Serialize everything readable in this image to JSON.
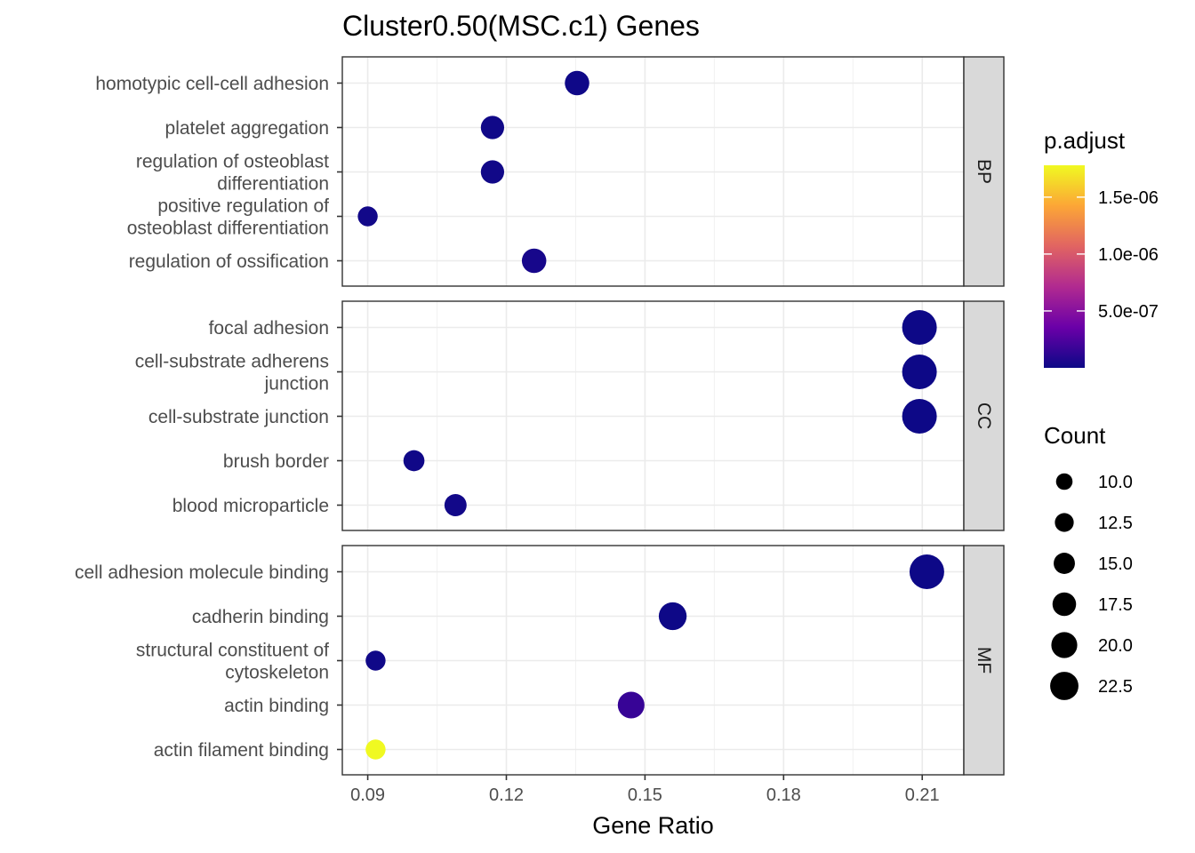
{
  "chart_data": {
    "type": "scatter",
    "title": "Cluster0.50(MSC.c1) Genes",
    "xlabel": "Gene Ratio",
    "ylabel": "",
    "xlim": [
      0.0845,
      0.219
    ],
    "x_ticks": [
      0.09,
      0.12,
      0.15,
      0.18,
      0.21
    ],
    "x_tick_labels": [
      "0.09",
      "0.12",
      "0.15",
      "0.18",
      "0.21"
    ],
    "grid": true,
    "facets": [
      {
        "name": "BP",
        "terms": [
          {
            "label_lines": [
              "homotypic cell-cell adhesion"
            ],
            "x": 0.1353,
            "count": 14,
            "p_adjust": 8e-09
          },
          {
            "label_lines": [
              "platelet aggregation"
            ],
            "x": 0.117,
            "count": 13,
            "p_adjust": 1e-08
          },
          {
            "label_lines": [
              "regulation of osteoblast",
              "differentiation"
            ],
            "x": 0.117,
            "count": 13,
            "p_adjust": 1.5e-08
          },
          {
            "label_lines": [
              "positive regulation of",
              "osteoblast differentiation"
            ],
            "x": 0.09,
            "count": 10,
            "p_adjust": 2e-08
          },
          {
            "label_lines": [
              "regulation of ossification"
            ],
            "x": 0.126,
            "count": 14,
            "p_adjust": 4e-08
          }
        ]
      },
      {
        "name": "CC",
        "terms": [
          {
            "label_lines": [
              "focal adhesion"
            ],
            "x": 0.2094,
            "count": 23,
            "p_adjust": 1e-09
          },
          {
            "label_lines": [
              "cell-substrate adherens",
              "junction"
            ],
            "x": 0.2094,
            "count": 23,
            "p_adjust": 1e-09
          },
          {
            "label_lines": [
              "cell-substrate junction"
            ],
            "x": 0.2094,
            "count": 23,
            "p_adjust": 1.2e-09
          },
          {
            "label_lines": [
              "brush border"
            ],
            "x": 0.1,
            "count": 11,
            "p_adjust": 1e-08
          },
          {
            "label_lines": [
              "blood microparticle"
            ],
            "x": 0.109,
            "count": 12,
            "p_adjust": 2e-08
          }
        ]
      },
      {
        "name": "MF",
        "terms": [
          {
            "label_lines": [
              "cell adhesion molecule binding"
            ],
            "x": 0.211,
            "count": 23,
            "p_adjust": 1e-09
          },
          {
            "label_lines": [
              "cadherin binding"
            ],
            "x": 0.156,
            "count": 17,
            "p_adjust": 5e-09
          },
          {
            "label_lines": [
              "structural constituent of",
              "cytoskeleton"
            ],
            "x": 0.0917,
            "count": 10,
            "p_adjust": 1e-08
          },
          {
            "label_lines": [
              "actin binding"
            ],
            "x": 0.147,
            "count": 16,
            "p_adjust": 1.6e-07
          },
          {
            "label_lines": [
              "actin filament binding"
            ],
            "x": 0.0917,
            "count": 10,
            "p_adjust": 1.8e-06
          }
        ]
      }
    ],
    "color_legend": {
      "title": "p.adjust",
      "min": 0.0,
      "max": 1.78e-06,
      "tick_values": [
        5e-07,
        1e-06,
        1.5e-06
      ],
      "tick_labels": [
        "5.0e-07",
        "1.0e-06",
        "1.5e-06"
      ],
      "colors": [
        "#0d0887",
        "#6a00a8",
        "#b12a90",
        "#e16462",
        "#fca636",
        "#f0f921"
      ]
    },
    "size_legend": {
      "title": "Count",
      "values": [
        10.0,
        12.5,
        15.0,
        17.5,
        20.0,
        22.5
      ],
      "labels": [
        "10.0",
        "12.5",
        "15.0",
        "17.5",
        "20.0",
        "22.5"
      ]
    },
    "legend_position": "right",
    "strip_color": "#d9d9d9"
  }
}
